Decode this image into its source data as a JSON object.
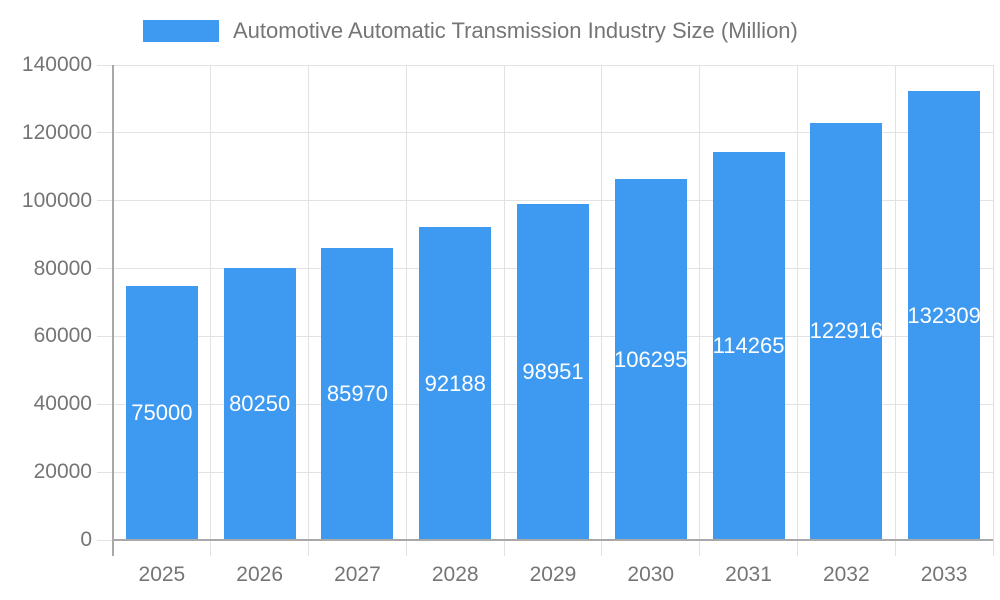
{
  "chart_data": {
    "type": "bar",
    "title": "Automotive Automatic Transmission Industry Size (Million)",
    "categories": [
      "2025",
      "2026",
      "2027",
      "2028",
      "2029",
      "2030",
      "2031",
      "2032",
      "2033"
    ],
    "values": [
      75000,
      80250,
      85970,
      92188,
      98951,
      106295,
      114265,
      122916,
      132309
    ],
    "series_name": "Automotive Automatic Transmission Industry Size (Million)",
    "xlabel": "",
    "ylabel": "",
    "ylim": [
      0,
      140000
    ],
    "y_ticks": [
      0,
      20000,
      40000,
      60000,
      80000,
      100000,
      120000,
      140000
    ],
    "grid": "on",
    "legend_position": "top",
    "value_label_position": "inside-middle",
    "colors": {
      "bar": "#3d9af0",
      "grid": "#e2e2e2",
      "axis": "#a8a8a8",
      "text": "#757575",
      "value_label": "#ffffff",
      "background": "#ffffff"
    }
  }
}
